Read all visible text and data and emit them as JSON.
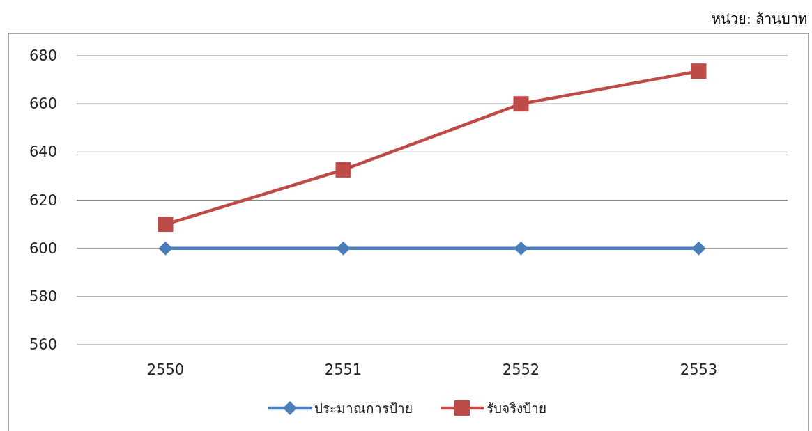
{
  "chart_data": {
    "type": "line",
    "annotations": [
      "หน่วย: ล้านบาท"
    ],
    "categories": [
      "2550",
      "2551",
      "2552",
      "2553"
    ],
    "series": [
      {
        "name": "ประมาณการป้าย",
        "color": "#4a7ebb",
        "marker": "diamond",
        "values": [
          600,
          600,
          600,
          600
        ]
      },
      {
        "name": "รับจริงป้าย",
        "color": "#be4b48",
        "marker": "square",
        "values": [
          610,
          632.6,
          660,
          673.6
        ]
      }
    ],
    "ylim": [
      560,
      680
    ],
    "yticks": [
      560,
      580,
      600,
      620,
      640,
      660,
      680
    ],
    "grid": "y",
    "legend": "bottom"
  }
}
